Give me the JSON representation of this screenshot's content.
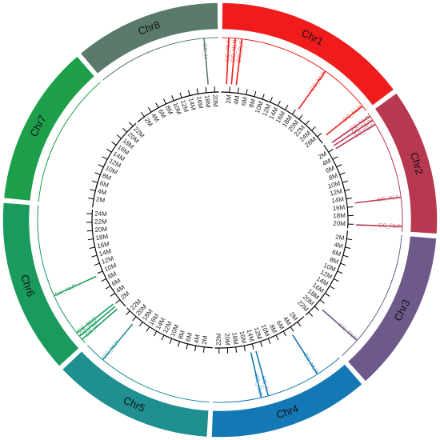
{
  "chart_data": {
    "type": "circos",
    "chromosomes": [
      {
        "name": "Chr1",
        "color": "#f01c1c",
        "length": 28,
        "ticks": [
          {
            "value": 2,
            "label": "2M"
          },
          {
            "value": 4,
            "label": "4M"
          },
          {
            "value": 6,
            "label": "6M"
          },
          {
            "value": 8,
            "label": "8M"
          },
          {
            "value": 10,
            "label": "10M"
          },
          {
            "value": 12,
            "label": "12M"
          },
          {
            "value": 14,
            "label": "14M"
          },
          {
            "value": 16,
            "label": "16M"
          },
          {
            "value": 18,
            "label": "18M"
          },
          {
            "value": 20,
            "label": "20M"
          },
          {
            "value": 22,
            "label": "22M"
          },
          {
            "value": 24,
            "label": "24M"
          },
          {
            "value": 26,
            "label": "26M"
          }
        ],
        "features": [
          {
            "label": "GC_RLK",
            "position": 1.2
          },
          {
            "label": "GC_NLR",
            "position": 2.3
          },
          {
            "label": "GC_RLK",
            "position": 3.4
          },
          {
            "label": "GC_NLR",
            "position": 18.5
          },
          {
            "label": "GC_NLR",
            "position": 27
          }
        ]
      },
      {
        "name": "Chr2",
        "color": "#b8384f",
        "length": 21,
        "ticks": [
          {
            "value": 2,
            "label": "2M"
          },
          {
            "value": 4,
            "label": "4M"
          },
          {
            "value": 6,
            "label": "6M"
          },
          {
            "value": 8,
            "label": "8M"
          },
          {
            "value": 10,
            "label": "10M"
          },
          {
            "value": 12,
            "label": "12M"
          },
          {
            "value": 14,
            "label": "14M"
          },
          {
            "value": 16,
            "label": "16M"
          },
          {
            "value": 18,
            "label": "18M"
          },
          {
            "value": 20,
            "label": "20M"
          }
        ],
        "features": [
          {
            "label": "GC_NLR",
            "position": 0.6
          },
          {
            "label": "GC_NLR",
            "position": 1.4
          },
          {
            "label": "GC_RLK",
            "position": 2.2
          },
          {
            "label": "GC_RLK",
            "position": 15.2
          },
          {
            "label": "GC_RLK",
            "position": 20.1
          }
        ]
      },
      {
        "name": "Chr3",
        "color": "#6e5a8a",
        "length": 23,
        "ticks": [
          {
            "value": 2,
            "label": "2M"
          },
          {
            "value": 4,
            "label": "4M"
          },
          {
            "value": 6,
            "label": "6M"
          },
          {
            "value": 8,
            "label": "8M"
          },
          {
            "value": 10,
            "label": "10M"
          },
          {
            "value": 12,
            "label": "12M"
          },
          {
            "value": 14,
            "label": "14M"
          },
          {
            "value": 16,
            "label": "16M"
          },
          {
            "value": 18,
            "label": "18M"
          },
          {
            "value": 20,
            "label": "20M"
          },
          {
            "value": 22,
            "label": "22M"
          }
        ],
        "features": [
          {
            "label": "GC_RLK",
            "position": 19.4
          }
        ]
      },
      {
        "name": "Chr4",
        "color": "#1478b4",
        "length": 23,
        "ticks": [
          {
            "value": 2,
            "label": "2M"
          },
          {
            "value": 4,
            "label": "4M"
          },
          {
            "value": 6,
            "label": "6M"
          },
          {
            "value": 8,
            "label": "8M"
          },
          {
            "value": 10,
            "label": "10M"
          },
          {
            "value": 12,
            "label": "12M"
          },
          {
            "value": 14,
            "label": "14M"
          },
          {
            "value": 16,
            "label": "16M"
          },
          {
            "value": 18,
            "label": "18M"
          },
          {
            "value": 20,
            "label": "20M"
          },
          {
            "value": 22,
            "label": "22M"
          }
        ],
        "features": [
          {
            "label": "GC_NLR",
            "position": 4.6
          },
          {
            "label": "GC_H",
            "position": 13.6
          },
          {
            "label": "GC_RLK",
            "position": 14.8
          }
        ]
      },
      {
        "name": "Chr5",
        "color": "#1f8f8f",
        "length": 23,
        "ticks": [
          {
            "value": 2,
            "label": "2M"
          },
          {
            "value": 4,
            "label": "4M"
          },
          {
            "value": 6,
            "label": "6M"
          },
          {
            "value": 8,
            "label": "8M"
          },
          {
            "value": 10,
            "label": "10M"
          },
          {
            "value": 12,
            "label": "12M"
          },
          {
            "value": 14,
            "label": "14M"
          },
          {
            "value": 16,
            "label": "16M"
          },
          {
            "value": 18,
            "label": "18M"
          },
          {
            "value": 20,
            "label": "20M"
          },
          {
            "value": 22,
            "label": "22M"
          }
        ],
        "features": [
          {
            "label": "GC_NLR",
            "position": 19.5
          }
        ]
      },
      {
        "name": "Chr6",
        "color": "#1a9a5c",
        "length": 25,
        "ticks": [
          {
            "value": 2,
            "label": "2M"
          },
          {
            "value": 4,
            "label": "4M"
          },
          {
            "value": 6,
            "label": "6M"
          },
          {
            "value": 8,
            "label": "8M"
          },
          {
            "value": 10,
            "label": "10M"
          },
          {
            "value": 12,
            "label": "12M"
          },
          {
            "value": 14,
            "label": "14M"
          },
          {
            "value": 16,
            "label": "16M"
          },
          {
            "value": 18,
            "label": "18M"
          },
          {
            "value": 20,
            "label": "20M"
          },
          {
            "value": 22,
            "label": "22M"
          },
          {
            "value": 24,
            "label": "24M"
          }
        ],
        "features": [
          {
            "label": "GC_H",
            "position": 0.8
          },
          {
            "label": "GC_RLK",
            "position": 1.5
          },
          {
            "label": "GC_NLR",
            "position": 2.2
          },
          {
            "label": "GC_NLR",
            "position": 9.5
          }
        ]
      },
      {
        "name": "Chr7",
        "color": "#1ea04a",
        "length": 23,
        "ticks": [
          {
            "value": 2,
            "label": "2M"
          },
          {
            "value": 4,
            "label": "4M"
          },
          {
            "value": 6,
            "label": "6M"
          },
          {
            "value": 8,
            "label": "8M"
          },
          {
            "value": 10,
            "label": "10M"
          },
          {
            "value": 12,
            "label": "12M"
          },
          {
            "value": 14,
            "label": "14M"
          },
          {
            "value": 16,
            "label": "16M"
          },
          {
            "value": 18,
            "label": "18M"
          },
          {
            "value": 20,
            "label": "20M"
          },
          {
            "value": 22,
            "label": "22M"
          }
        ],
        "features": []
      },
      {
        "name": "Chr8",
        "color": "#5a7a6a",
        "length": 21,
        "ticks": [
          {
            "value": 2,
            "label": "2M"
          },
          {
            "value": 4,
            "label": "4M"
          },
          {
            "value": 6,
            "label": "6M"
          },
          {
            "value": 8,
            "label": "8M"
          },
          {
            "value": 10,
            "label": "10M"
          },
          {
            "value": 12,
            "label": "12M"
          },
          {
            "value": 14,
            "label": "14M"
          },
          {
            "value": 16,
            "label": "16M"
          },
          {
            "value": 18,
            "label": "18M"
          },
          {
            "value": 20,
            "label": "20M"
          }
        ],
        "features": [
          {
            "label": "GC_H",
            "position": 18.6
          }
        ]
      }
    ]
  }
}
